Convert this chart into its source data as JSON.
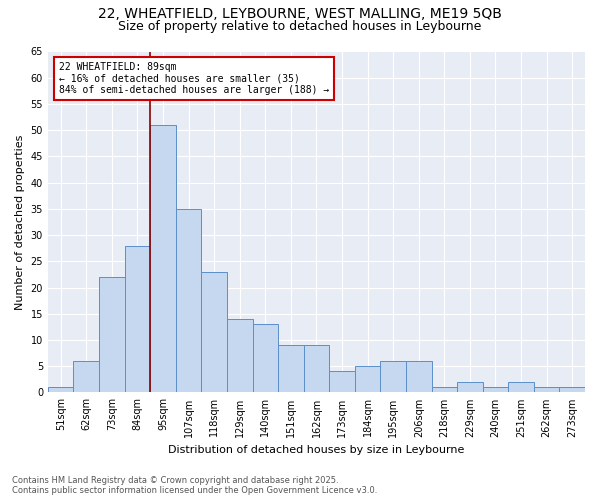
{
  "title_line1": "22, WHEATFIELD, LEYBOURNE, WEST MALLING, ME19 5QB",
  "title_line2": "Size of property relative to detached houses in Leybourne",
  "xlabel": "Distribution of detached houses by size in Leybourne",
  "ylabel": "Number of detached properties",
  "categories": [
    "51sqm",
    "62sqm",
    "73sqm",
    "84sqm",
    "95sqm",
    "107sqm",
    "118sqm",
    "129sqm",
    "140sqm",
    "151sqm",
    "162sqm",
    "173sqm",
    "184sqm",
    "195sqm",
    "206sqm",
    "218sqm",
    "229sqm",
    "240sqm",
    "251sqm",
    "262sqm",
    "273sqm"
  ],
  "values": [
    1,
    6,
    22,
    28,
    51,
    35,
    23,
    14,
    13,
    9,
    9,
    4,
    5,
    6,
    6,
    1,
    2,
    1,
    2,
    1,
    1
  ],
  "bar_color": "#c5d8f0",
  "bar_edge_color": "#5b8fc9",
  "bg_color": "#e8edf5",
  "vline_color": "#8b0000",
  "annotation_text": "22 WHEATFIELD: 89sqm\n← 16% of detached houses are smaller (35)\n84% of semi-detached houses are larger (188) →",
  "annotation_box_color": "#cc0000",
  "ylim": [
    0,
    65
  ],
  "yticks": [
    0,
    5,
    10,
    15,
    20,
    25,
    30,
    35,
    40,
    45,
    50,
    55,
    60,
    65
  ],
  "footer": "Contains HM Land Registry data © Crown copyright and database right 2025.\nContains public sector information licensed under the Open Government Licence v3.0.",
  "title_fontsize": 10,
  "subtitle_fontsize": 9,
  "axis_label_fontsize": 8,
  "tick_fontsize": 7,
  "footer_fontsize": 6
}
